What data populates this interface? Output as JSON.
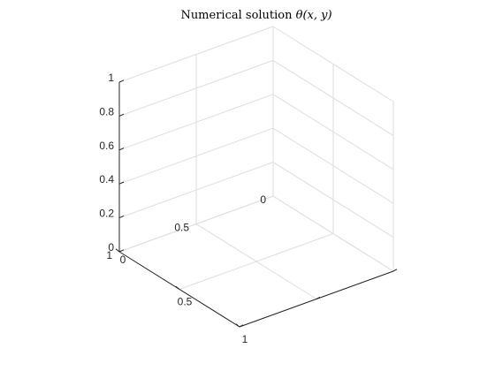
{
  "chart_data": {
    "type": "surface",
    "title": "Numerical solution θ(x,y)",
    "title_parts": {
      "prefix": "Numerical solution ",
      "math": "θ(x, y)"
    },
    "xlabel": "",
    "ylabel": "",
    "zlabel": "",
    "xlim": [
      0,
      1
    ],
    "ylim": [
      0,
      1
    ],
    "zlim": [
      0,
      1
    ],
    "x_ticks": [
      0,
      0.5,
      1
    ],
    "x_tick_labels": [
      "0",
      "0.5",
      "1"
    ],
    "y_ticks": [
      0,
      0.5,
      1
    ],
    "y_tick_labels": [
      "0",
      "0.5",
      "1"
    ],
    "z_ticks": [
      0,
      0.2,
      0.4,
      0.6,
      0.8,
      1
    ],
    "z_tick_labels": [
      "0",
      "0.2",
      "0.4",
      "0.6",
      "0.8",
      "1"
    ],
    "grid": true,
    "box": false,
    "view": "3d-default",
    "series": [],
    "colors": {
      "axis": "#262626",
      "grid": "#dedede",
      "background": "#ffffff"
    }
  }
}
